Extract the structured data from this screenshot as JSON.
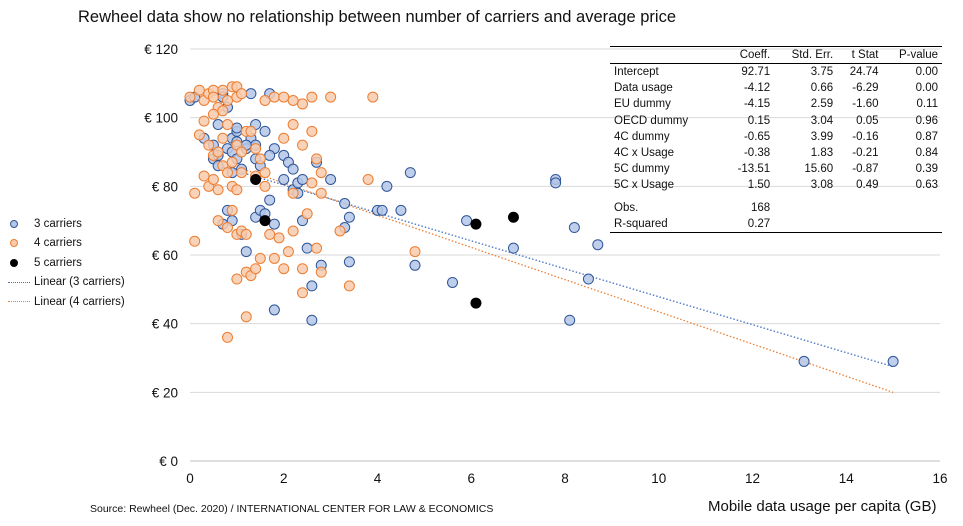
{
  "title": "Rewheel data show no relationship between number of carriers and average price",
  "source": "Source: Rewheel (Dec. 2020) / INTERNATIONAL CENTER FOR LAW & ECONOMICS",
  "legend": [
    {
      "label": "3 carriers",
      "kind": "dot",
      "color": "#2f5597",
      "fill": "#b4c7e7"
    },
    {
      "label": "4 carriers",
      "kind": "dot",
      "color": "#ed7d31",
      "fill": "#f8cbad"
    },
    {
      "label": "5 carriers",
      "kind": "dot",
      "color": "#000000",
      "fill": "#000000"
    },
    {
      "label": "Linear (3 carriers)",
      "kind": "line",
      "color": "#4472c4"
    },
    {
      "label": "Linear (4 carriers)",
      "kind": "line",
      "color": "#ed7d31"
    }
  ],
  "regression_table": {
    "headers": [
      "",
      "Coeff.",
      "Std. Err.",
      "t Stat",
      "P-value"
    ],
    "rows": [
      [
        "Intercept",
        "92.71",
        "3.75",
        "24.74",
        "0.00"
      ],
      [
        "Data usage",
        "-4.12",
        "0.66",
        "-6.29",
        "0.00"
      ],
      [
        "EU dummy",
        "-4.15",
        "2.59",
        "-1.60",
        "0.11"
      ],
      [
        "OECD dummy",
        "0.15",
        "3.04",
        "0.05",
        "0.96"
      ],
      [
        "4C dummy",
        "-0.65",
        "3.99",
        "-0.16",
        "0.87"
      ],
      [
        "4C x Usage",
        "-0.38",
        "1.83",
        "-0.21",
        "0.84"
      ],
      [
        "5C dummy",
        "-13.51",
        "15.60",
        "-0.87",
        "0.39"
      ],
      [
        "5C x Usage",
        "1.50",
        "3.08",
        "0.49",
        "0.63"
      ]
    ],
    "stats": [
      [
        "Obs.",
        "168"
      ],
      [
        "R-squared",
        "0.27"
      ]
    ]
  },
  "chart_data": {
    "type": "scatter",
    "title": "Rewheel data show no relationship between number of carriers and average price",
    "xlabel": "Mobile data usage per capita (GB)",
    "ylabel": "",
    "xlim": [
      0,
      16
    ],
    "ylim": [
      0,
      120
    ],
    "x_ticks": [
      0,
      2,
      4,
      6,
      8,
      10,
      12,
      14,
      16
    ],
    "x_tick_labels": [
      "0",
      "2",
      "4",
      "6",
      "8",
      "10",
      "12",
      "14",
      "16"
    ],
    "y_ticks": [
      0,
      20,
      40,
      60,
      80,
      100,
      120
    ],
    "y_tick_labels": [
      "€ 0",
      "€ 20",
      "€ 40",
      "€ 60",
      "€ 80",
      "€ 100",
      "€ 120"
    ],
    "grid": "horizontal",
    "series": [
      {
        "name": "3 carriers",
        "stroke": "#2f5597",
        "fill": "#b4c7e7",
        "points": [
          [
            0.0,
            105
          ],
          [
            0.1,
            106
          ],
          [
            0.3,
            94
          ],
          [
            0.5,
            88
          ],
          [
            0.5,
            92
          ],
          [
            0.6,
            89
          ],
          [
            0.6,
            86
          ],
          [
            0.7,
            107
          ],
          [
            0.7,
            106
          ],
          [
            0.8,
            103
          ],
          [
            0.8,
            91
          ],
          [
            0.9,
            94
          ],
          [
            0.9,
            90
          ],
          [
            1.0,
            96
          ],
          [
            1.0,
            93
          ],
          [
            1.0,
            88
          ],
          [
            1.1,
            85
          ],
          [
            1.2,
            91
          ],
          [
            1.3,
            94
          ],
          [
            1.3,
            107
          ],
          [
            1.4,
            98
          ],
          [
            1.4,
            92
          ],
          [
            1.4,
            88
          ],
          [
            1.5,
            86
          ],
          [
            1.6,
            96
          ],
          [
            1.7,
            107
          ],
          [
            1.8,
            91
          ],
          [
            1.2,
            61
          ],
          [
            1.4,
            71
          ],
          [
            1.5,
            73
          ],
          [
            1.6,
            72
          ],
          [
            1.7,
            76
          ],
          [
            1.8,
            69
          ],
          [
            1.8,
            44
          ],
          [
            2.0,
            89
          ],
          [
            2.1,
            87
          ],
          [
            2.2,
            85
          ],
          [
            2.2,
            79
          ],
          [
            2.3,
            81
          ],
          [
            2.4,
            82
          ],
          [
            2.4,
            70
          ],
          [
            2.5,
            62
          ],
          [
            2.6,
            41
          ],
          [
            2.6,
            51
          ],
          [
            2.7,
            87
          ],
          [
            2.8,
            57
          ],
          [
            3.0,
            82
          ],
          [
            3.3,
            68
          ],
          [
            3.3,
            75
          ],
          [
            3.4,
            71
          ],
          [
            3.4,
            58
          ],
          [
            4.0,
            73
          ],
          [
            4.1,
            73
          ],
          [
            4.2,
            80
          ],
          [
            4.5,
            73
          ],
          [
            4.7,
            84
          ],
          [
            4.8,
            57
          ],
          [
            5.6,
            52
          ],
          [
            5.9,
            70
          ],
          [
            6.9,
            62
          ],
          [
            7.8,
            82
          ],
          [
            7.8,
            81
          ],
          [
            8.1,
            41
          ],
          [
            8.2,
            68
          ],
          [
            8.5,
            53
          ],
          [
            8.7,
            63
          ],
          [
            13.1,
            29
          ],
          [
            15.0,
            29
          ],
          [
            0.8,
            73
          ],
          [
            0.7,
            69
          ],
          [
            0.9,
            70
          ],
          [
            1.1,
            66
          ],
          [
            1.2,
            92
          ],
          [
            1.7,
            89
          ],
          [
            2.0,
            82
          ],
          [
            2.3,
            78
          ],
          [
            0.9,
            84
          ],
          [
            1.0,
            97
          ],
          [
            0.6,
            98
          ]
        ]
      },
      {
        "name": "4 carriers",
        "stroke": "#ed7d31",
        "fill": "#f8cbad",
        "points": [
          [
            0.0,
            106
          ],
          [
            0.2,
            108
          ],
          [
            0.3,
            105
          ],
          [
            0.4,
            107
          ],
          [
            0.5,
            108
          ],
          [
            0.5,
            106
          ],
          [
            0.6,
            103
          ],
          [
            0.7,
            108
          ],
          [
            0.8,
            105
          ],
          [
            0.8,
            98
          ],
          [
            0.9,
            109
          ],
          [
            1.0,
            109
          ],
          [
            1.0,
            106
          ],
          [
            1.1,
            107
          ],
          [
            0.2,
            95
          ],
          [
            0.3,
            99
          ],
          [
            0.4,
            92
          ],
          [
            0.5,
            89
          ],
          [
            0.6,
            90
          ],
          [
            0.7,
            94
          ],
          [
            0.9,
            87
          ],
          [
            1.0,
            92
          ],
          [
            1.1,
            90
          ],
          [
            1.2,
            96
          ],
          [
            1.3,
            96
          ],
          [
            1.4,
            91
          ],
          [
            1.5,
            88
          ],
          [
            1.6,
            84
          ],
          [
            0.1,
            78
          ],
          [
            0.3,
            83
          ],
          [
            0.4,
            80
          ],
          [
            0.5,
            82
          ],
          [
            0.6,
            79
          ],
          [
            0.7,
            86
          ],
          [
            0.8,
            84
          ],
          [
            0.9,
            80
          ],
          [
            1.0,
            79
          ],
          [
            1.1,
            84
          ],
          [
            1.4,
            83
          ],
          [
            1.6,
            80
          ],
          [
            0.1,
            64
          ],
          [
            0.6,
            70
          ],
          [
            0.8,
            68
          ],
          [
            0.9,
            73
          ],
          [
            1.0,
            66
          ],
          [
            1.1,
            67
          ],
          [
            1.2,
            66
          ],
          [
            1.2,
            55
          ],
          [
            1.3,
            54
          ],
          [
            1.5,
            59
          ],
          [
            1.7,
            66
          ],
          [
            1.8,
            59
          ],
          [
            1.9,
            65
          ],
          [
            2.0,
            56
          ],
          [
            2.1,
            61
          ],
          [
            2.2,
            67
          ],
          [
            2.2,
            78
          ],
          [
            2.4,
            56
          ],
          [
            2.4,
            49
          ],
          [
            2.5,
            72
          ],
          [
            2.6,
            81
          ],
          [
            2.7,
            62
          ],
          [
            2.8,
            78
          ],
          [
            2.8,
            55
          ],
          [
            3.2,
            67
          ],
          [
            3.4,
            51
          ],
          [
            3.8,
            82
          ],
          [
            4.8,
            61
          ],
          [
            2.0,
            94
          ],
          [
            2.2,
            98
          ],
          [
            2.4,
            92
          ],
          [
            2.6,
            96
          ],
          [
            2.7,
            88
          ],
          [
            2.8,
            84
          ],
          [
            1.6,
            105
          ],
          [
            1.8,
            106
          ],
          [
            2.0,
            106
          ],
          [
            2.2,
            105
          ],
          [
            2.4,
            104
          ],
          [
            2.6,
            106
          ],
          [
            3.0,
            106
          ],
          [
            3.9,
            106
          ],
          [
            0.8,
            36
          ],
          [
            1.0,
            53
          ],
          [
            1.2,
            42
          ],
          [
            1.4,
            56
          ],
          [
            0.5,
            101
          ],
          [
            0.7,
            102
          ]
        ]
      },
      {
        "name": "5 carriers",
        "stroke": "#000000",
        "fill": "#000000",
        "points": [
          [
            1.4,
            82
          ],
          [
            1.6,
            70
          ],
          [
            6.1,
            69
          ],
          [
            6.9,
            71
          ],
          [
            6.1,
            46
          ]
        ]
      }
    ],
    "trendlines": [
      {
        "name": "Linear (3 carriers)",
        "color": "#4472c4",
        "from": [
          0.5,
          86.5
        ],
        "to": [
          15.0,
          27.5
        ]
      },
      {
        "name": "Linear (4 carriers)",
        "color": "#ed7d31",
        "from": [
          0.5,
          88.0
        ],
        "to": [
          15.0,
          20.0
        ]
      }
    ]
  }
}
